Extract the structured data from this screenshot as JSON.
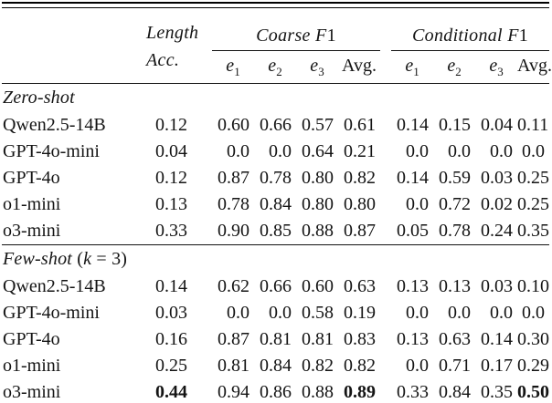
{
  "table": {
    "header": {
      "corner": "",
      "length_label_line1": "Length",
      "length_label_line2": "Acc.",
      "groups": [
        {
          "name": "coarse-f1",
          "parts": [
            {
              "text": "Coarse F",
              "italic": true
            },
            {
              "text": "1",
              "italic": false
            }
          ]
        },
        {
          "name": "conditional-f1",
          "parts": [
            {
              "text": "Conditional F",
              "italic": true
            },
            {
              "text": "1",
              "italic": false
            }
          ]
        }
      ],
      "subcolumns": [
        {
          "base": "e",
          "sub": "1"
        },
        {
          "base": "e",
          "sub": "2"
        },
        {
          "base": "e",
          "sub": "3"
        },
        {
          "text": "Avg."
        }
      ]
    },
    "sections": [
      {
        "label_parts": [
          {
            "text": "Zero-shot",
            "italic": true
          }
        ],
        "rows": [
          {
            "model": "Qwen2.5-14B",
            "values": [
              "0.12",
              "0.60",
              "0.66",
              "0.57",
              "0.61",
              "0.14",
              "0.15",
              "0.04",
              "0.11"
            ]
          },
          {
            "model": "GPT-4o-mini",
            "values": [
              "0.04",
              "0.0",
              "0.0",
              "0.64",
              "0.21",
              "0.0",
              "0.0",
              "0.0",
              "0.0"
            ]
          },
          {
            "model": "GPT-4o",
            "values": [
              "0.12",
              "0.87",
              "0.78",
              "0.80",
              "0.82",
              "0.14",
              "0.59",
              "0.03",
              "0.25"
            ]
          },
          {
            "model": "o1-mini",
            "values": [
              "0.13",
              "0.78",
              "0.84",
              "0.80",
              "0.80",
              "0.0",
              "0.72",
              "0.02",
              "0.25"
            ]
          },
          {
            "model": "o3-mini",
            "values": [
              "0.33",
              "0.90",
              "0.85",
              "0.88",
              "0.87",
              "0.05",
              "0.78",
              "0.24",
              "0.35"
            ]
          }
        ]
      },
      {
        "label_parts": [
          {
            "text": "Few-shot ",
            "italic": true
          },
          {
            "text": "(",
            "italic": false
          },
          {
            "text": "k",
            "italic": true
          },
          {
            "text": " = 3)",
            "italic": false
          }
        ],
        "rows": [
          {
            "model": "Qwen2.5-14B",
            "values": [
              "0.14",
              "0.62",
              "0.66",
              "0.60",
              "0.63",
              "0.13",
              "0.13",
              "0.03",
              "0.10"
            ]
          },
          {
            "model": "GPT-4o-mini",
            "values": [
              "0.03",
              "0.0",
              "0.0",
              "0.58",
              "0.19",
              "0.0",
              "0.0",
              "0.0",
              "0.0"
            ]
          },
          {
            "model": "GPT-4o",
            "values": [
              "0.16",
              "0.87",
              "0.81",
              "0.81",
              "0.83",
              "0.13",
              "0.63",
              "0.14",
              "0.30"
            ]
          },
          {
            "model": "o1-mini",
            "values": [
              "0.25",
              "0.81",
              "0.84",
              "0.82",
              "0.82",
              "0.0",
              "0.71",
              "0.17",
              "0.29"
            ]
          },
          {
            "model": "o3-mini",
            "values": [
              "0.44",
              "0.94",
              "0.86",
              "0.88",
              "0.89",
              "0.33",
              "0.84",
              "0.35",
              "0.50"
            ],
            "bold": [
              true,
              false,
              false,
              false,
              true,
              false,
              false,
              false,
              true
            ]
          }
        ]
      }
    ]
  }
}
